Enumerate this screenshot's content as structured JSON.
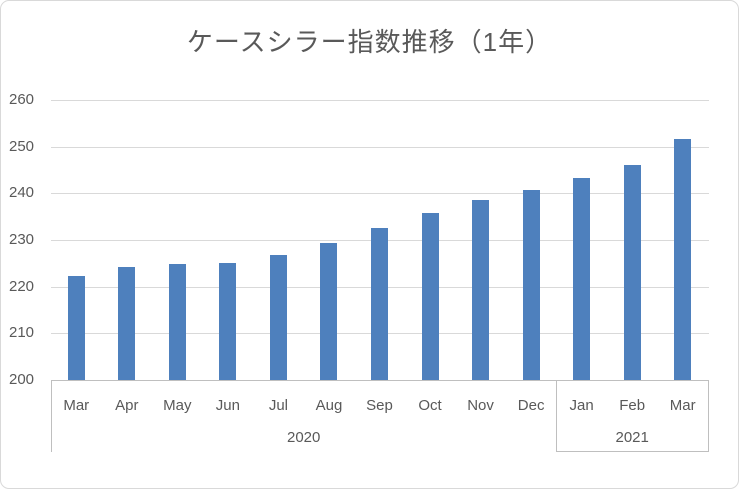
{
  "chart_data": {
    "type": "bar",
    "title": "ケースシラー指数推移（1年）",
    "categories": [
      "Mar",
      "Apr",
      "May",
      "Jun",
      "Jul",
      "Aug",
      "Sep",
      "Oct",
      "Nov",
      "Dec",
      "Jan",
      "Feb",
      "Mar"
    ],
    "values": [
      222.3,
      224.2,
      224.9,
      225.1,
      226.7,
      229.3,
      232.6,
      235.8,
      238.6,
      240.8,
      243.2,
      246.1,
      251.6
    ],
    "year_groups": [
      {
        "label": "2020",
        "start": 0,
        "end": 9
      },
      {
        "label": "2021",
        "start": 10,
        "end": 12
      }
    ],
    "yticks": [
      200,
      210,
      220,
      230,
      240,
      250,
      260
    ],
    "ylim": [
      200,
      260
    ],
    "xlabel": "",
    "ylabel": "",
    "grid": true,
    "legend": false
  },
  "colors": {
    "bar": "#4E80BD",
    "gridline": "#D9D9D9",
    "axis_line": "#BFBFBF",
    "text": "#595959",
    "border": "#D9D9D9",
    "background": "#FFFFFF"
  }
}
